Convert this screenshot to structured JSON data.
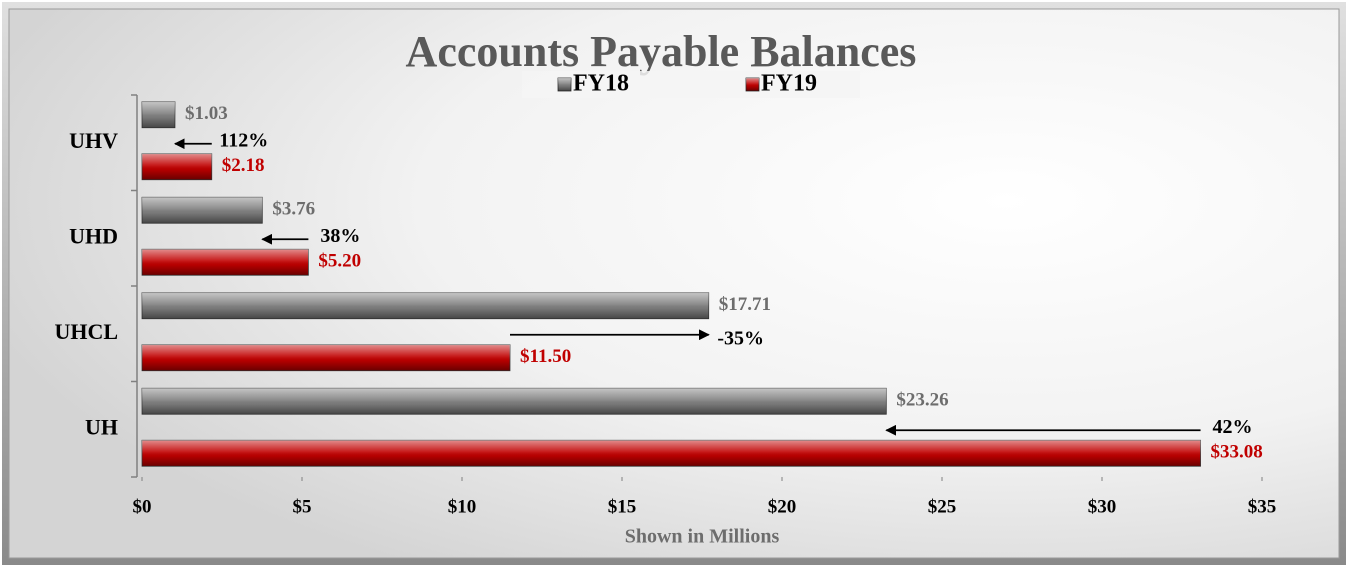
{
  "chart_data": {
    "type": "hbar",
    "title": "Accounts Payable Balances",
    "x_label": "Shown in Millions",
    "categories": [
      "UHV",
      "UHD",
      "UHCL",
      "UH"
    ],
    "series": [
      {
        "name": "FY18",
        "color": "#7f7f7f",
        "values": [
          1.03,
          3.76,
          17.71,
          23.26
        ],
        "value_labels": [
          "$1.03",
          "$3.76",
          "$17.71",
          "$23.26"
        ]
      },
      {
        "name": "FY19",
        "color": "#c00000",
        "values": [
          2.18,
          5.2,
          11.5,
          33.08
        ],
        "value_labels": [
          "$2.18",
          "$5.20",
          "$11.50",
          "$33.08"
        ]
      }
    ],
    "annotations": [
      "112%",
      "38%",
      "-35%",
      "42%"
    ],
    "xlim": [
      0,
      35
    ],
    "xticks": [
      {
        "value": 0,
        "label": "$0"
      },
      {
        "value": 5,
        "label": "$5"
      },
      {
        "value": 10,
        "label": "$10"
      },
      {
        "value": 15,
        "label": "$15"
      },
      {
        "value": 20,
        "label": "$20"
      },
      {
        "value": 25,
        "label": "$25"
      },
      {
        "value": 30,
        "label": "$30"
      },
      {
        "value": 35,
        "label": "$35"
      }
    ]
  }
}
